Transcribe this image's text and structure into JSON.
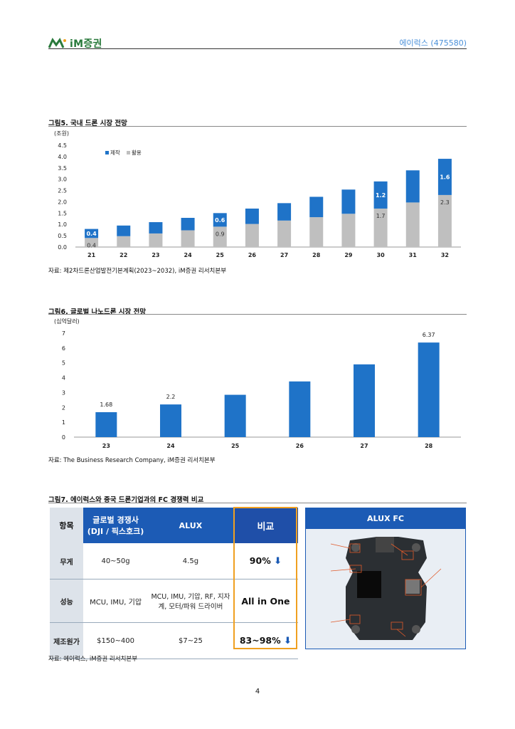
{
  "header": {
    "brand": "iM증권",
    "company": "에이럭스 (475580)"
  },
  "fig5": {
    "title": "그림5. 국내 드론 시장 전망",
    "unit": "(조원)",
    "source": "자료: 제2차드론산업발전기본계획(2023~2032), iM증권 리서치본부"
  },
  "fig6": {
    "title": "그림6. 글로벌 나노드론 시장 전망",
    "unit": "(십억달러)",
    "source": "자료: The Business Research Company, iM증권 리서치본부"
  },
  "fig7": {
    "title": "그림7. 에이럭스와 중국 드론기업과의 FC 경쟁력 비교",
    "source": "자료: 에이럭스, iM증권 리서치본부",
    "headers": [
      "항목",
      "글로벌 경쟁사 (DJI / 픽스호크)",
      "ALUX",
      "비교"
    ],
    "rows": [
      {
        "item": "무게",
        "global": "40~50g",
        "alux": "4.5g",
        "cmp": "90%"
      },
      {
        "item": "성능",
        "global": "MCU, IMU, 기압",
        "alux": "MCU, IMU, 기압, RF, 지자계, 모터/파워 드라이버",
        "cmp": "All in One"
      },
      {
        "item": "제조원가",
        "global": "$150~400",
        "alux": "$7~25",
        "cmp": "83~98%"
      }
    ],
    "board_title": "ALUX FC"
  },
  "page_number": "4",
  "chart_data": [
    {
      "type": "bar",
      "stacked": true,
      "categories": [
        "21",
        "22",
        "23",
        "24",
        "25",
        "26",
        "27",
        "28",
        "29",
        "30",
        "31",
        "32"
      ],
      "series": [
        {
          "name": "활용",
          "color": "#bfbfbf",
          "values": [
            0.4,
            0.48,
            0.6,
            0.74,
            0.9,
            1.02,
            1.17,
            1.32,
            1.47,
            1.7,
            1.97,
            2.3
          ],
          "labels": [
            "0.4",
            "",
            "",
            "",
            "0.9",
            "",
            "",
            "",
            "",
            "1.7",
            "",
            "2.3"
          ]
        },
        {
          "name": "제작",
          "color": "#1f73c8",
          "values": [
            0.4,
            0.47,
            0.5,
            0.55,
            0.6,
            0.68,
            0.77,
            0.9,
            1.07,
            1.2,
            1.42,
            1.6
          ],
          "labels": [
            "0.4",
            "",
            "",
            "",
            "0.6",
            "",
            "",
            "",
            "",
            "1.2",
            "",
            "1.6"
          ]
        }
      ],
      "yticks": [
        "0.0",
        "0.5",
        "1.0",
        "1.5",
        "2.0",
        "2.5",
        "3.0",
        "3.5",
        "4.0",
        "4.5"
      ],
      "ylim": [
        0,
        4.5
      ],
      "legend": "top-left"
    },
    {
      "type": "bar",
      "categories": [
        "23",
        "24",
        "25",
        "26",
        "27",
        "28"
      ],
      "series": [
        {
          "color": "#1f73c8",
          "values": [
            1.68,
            2.2,
            2.85,
            3.75,
            4.9,
            6.37
          ],
          "labels": [
            "1.68",
            "2.2",
            "",
            "",
            "",
            "6.37"
          ]
        }
      ],
      "yticks": [
        "0",
        "1",
        "2",
        "3",
        "4",
        "5",
        "6",
        "7"
      ],
      "ylim": [
        0,
        7
      ]
    }
  ]
}
